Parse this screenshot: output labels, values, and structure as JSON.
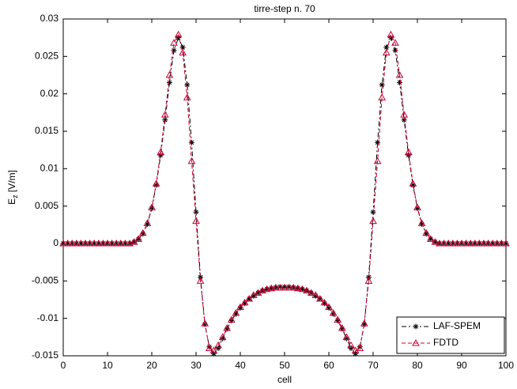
{
  "chart_data": {
    "type": "line",
    "title": "tirre-step n. 70",
    "xlabel": "cell",
    "ylabel": {
      "base": "E",
      "sub": "z",
      "rest": " [V/m]"
    },
    "x": [
      0,
      1,
      2,
      3,
      4,
      5,
      6,
      7,
      8,
      9,
      10,
      11,
      12,
      13,
      14,
      15,
      16,
      17,
      18,
      19,
      20,
      21,
      22,
      23,
      24,
      25,
      26,
      27,
      28,
      29,
      30,
      31,
      32,
      33,
      34,
      35,
      36,
      37,
      38,
      39,
      40,
      41,
      42,
      43,
      44,
      45,
      46,
      47,
      48,
      49,
      50,
      51,
      52,
      53,
      54,
      55,
      56,
      57,
      58,
      59,
      60,
      61,
      62,
      63,
      64,
      65,
      66,
      67,
      68,
      69,
      70,
      71,
      72,
      73,
      74,
      75,
      76,
      77,
      78,
      79,
      80,
      81,
      82,
      83,
      84,
      85,
      86,
      87,
      88,
      89,
      90,
      91,
      92,
      93,
      94,
      95,
      96,
      97,
      98,
      99,
      100
    ],
    "series": [
      {
        "name": "LAF-SPEM",
        "color": "#000000",
        "marker": "asterisk",
        "values": [
          0,
          0,
          0,
          0,
          0,
          0,
          0,
          0,
          0,
          0,
          0,
          0,
          0,
          0,
          0,
          0,
          0.0002,
          0.0006,
          0.0013,
          0.0026,
          0.0047,
          0.0078,
          0.0118,
          0.0165,
          0.0215,
          0.0258,
          0.0275,
          0.0262,
          0.0212,
          0.0135,
          0.0042,
          -0.0045,
          -0.0108,
          -0.0138,
          -0.0147,
          -0.014,
          -0.0127,
          -0.0114,
          -0.0103,
          -0.0094,
          -0.0086,
          -0.008,
          -0.0074,
          -0.007,
          -0.0066,
          -0.0063,
          -0.0061,
          -0.006,
          -0.0059,
          -0.0058,
          -0.0058,
          -0.0058,
          -0.0059,
          -0.006,
          -0.0061,
          -0.0063,
          -0.0066,
          -0.007,
          -0.0074,
          -0.008,
          -0.0086,
          -0.0094,
          -0.0103,
          -0.0114,
          -0.0127,
          -0.014,
          -0.0147,
          -0.0138,
          -0.0108,
          -0.0045,
          0.0042,
          0.0135,
          0.0212,
          0.0262,
          0.0275,
          0.0258,
          0.0215,
          0.0165,
          0.0118,
          0.0078,
          0.0047,
          0.0026,
          0.0013,
          0.0006,
          0.0002,
          0,
          0,
          0,
          0,
          0,
          0,
          0,
          0,
          0,
          0,
          0,
          0,
          0,
          0,
          0,
          0
        ]
      },
      {
        "name": "FDTD",
        "color": "#cc0033",
        "marker": "triangle",
        "values": [
          0,
          0,
          0,
          0,
          0,
          0,
          0,
          0,
          0,
          0,
          0,
          0,
          0,
          0,
          0,
          0,
          0.0002,
          0.0006,
          0.0014,
          0.0027,
          0.0048,
          0.008,
          0.0122,
          0.0172,
          0.0225,
          0.0268,
          0.0279,
          0.0255,
          0.0195,
          0.011,
          0.003,
          -0.005,
          -0.0107,
          -0.014,
          -0.0143,
          -0.0136,
          -0.0125,
          -0.0113,
          -0.0102,
          -0.0093,
          -0.0085,
          -0.0079,
          -0.0074,
          -0.0069,
          -0.0066,
          -0.0063,
          -0.0061,
          -0.006,
          -0.0059,
          -0.0059,
          -0.0059,
          -0.0059,
          -0.0059,
          -0.006,
          -0.0061,
          -0.0063,
          -0.0066,
          -0.0069,
          -0.0074,
          -0.0079,
          -0.0085,
          -0.0093,
          -0.0102,
          -0.0113,
          -0.0125,
          -0.0136,
          -0.0143,
          -0.014,
          -0.0107,
          -0.005,
          0.003,
          0.011,
          0.0195,
          0.0255,
          0.0279,
          0.0268,
          0.0225,
          0.0172,
          0.0122,
          0.008,
          0.0048,
          0.0027,
          0.0014,
          0.0006,
          0.0002,
          0,
          0,
          0,
          0,
          0,
          0,
          0,
          0,
          0,
          0,
          0,
          0,
          0,
          0,
          0,
          0
        ]
      }
    ],
    "xlim": [
      0,
      100
    ],
    "xticks": [
      0,
      10,
      20,
      30,
      40,
      50,
      60,
      70,
      80,
      90,
      100
    ],
    "ylim": [
      -0.015,
      0.03
    ],
    "yticks": [
      -0.015,
      -0.01,
      -0.005,
      0,
      0.005,
      0.01,
      0.015,
      0.02,
      0.025,
      0.03
    ],
    "grid": false,
    "legend": "lower right"
  }
}
